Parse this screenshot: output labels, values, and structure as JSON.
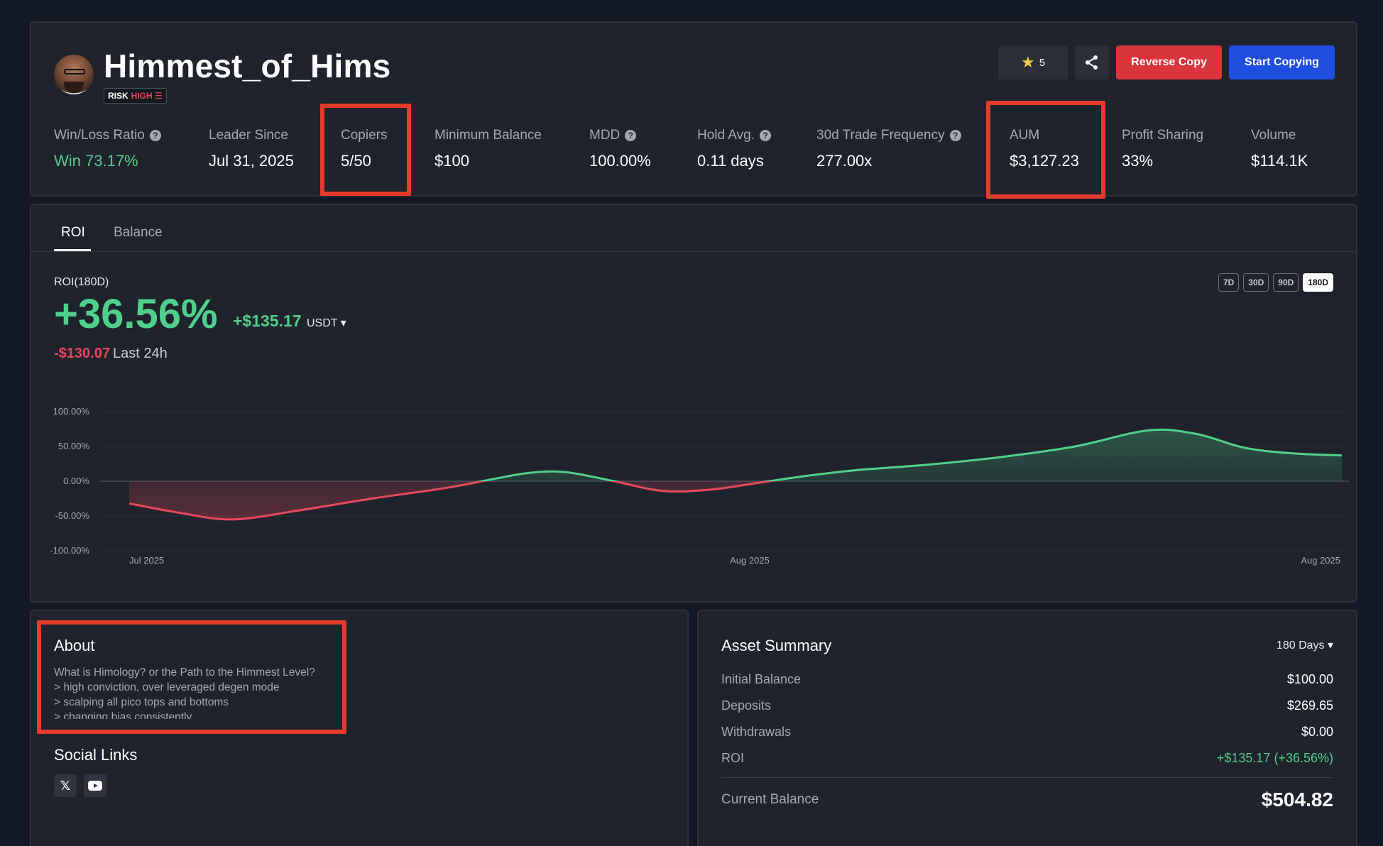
{
  "profile": {
    "username": "Himmest_of_Hims",
    "risk_label": "RISK",
    "risk_level": "HIGH ☰"
  },
  "actions": {
    "star_count": "5",
    "reverse_copy": "Reverse Copy",
    "start_copying": "Start Copying"
  },
  "stats": [
    {
      "label": "Win/Loss Ratio",
      "value": "Win 73.17%"
    },
    {
      "label": "Leader Since",
      "value": "Jul 31, 2025"
    },
    {
      "label": "Copiers",
      "value": "5/50"
    },
    {
      "label": "Minimum Balance",
      "value": "$100"
    },
    {
      "label": "MDD",
      "value": "100.00%"
    },
    {
      "label": "Hold Avg.",
      "value": "0.11 days"
    },
    {
      "label": "30d Trade Frequency",
      "value": "277.00x"
    },
    {
      "label": "AUM",
      "value": "$3,127.23"
    },
    {
      "label": "Profit Sharing",
      "value": "33%"
    },
    {
      "label": "Volume",
      "value": "$114.1K"
    }
  ],
  "tabs": [
    "ROI",
    "Balance"
  ],
  "roi": {
    "label": "ROI(180D)",
    "percent": "+36.56%",
    "pnl": "+$135.17",
    "unit": "USDT ▾",
    "change_24h": "-$130.07",
    "change_24h_label": "Last 24h",
    "ranges": [
      "7D",
      "30D",
      "90D",
      "180D"
    ],
    "active_range": "180D"
  },
  "chart_data": {
    "type": "area",
    "title": "",
    "x_tick_labels": [
      "Jul 2025",
      "Aug 2025",
      "Aug 2025"
    ],
    "y_tick_labels": [
      "100.00%",
      "50.00%",
      "0.00%",
      "-50.00%",
      "-100.00%"
    ],
    "ylim": [
      -100,
      100
    ],
    "series": [
      {
        "x": [
          0,
          0.04,
          0.085,
          0.14,
          0.2,
          0.26,
          0.3,
          0.33,
          0.36,
          0.4,
          0.44,
          0.48,
          0.52,
          0.56,
          0.6,
          0.66,
          0.72,
          0.78,
          0.84,
          0.88,
          0.92,
          0.96,
          1.0
        ],
        "values": [
          -32,
          -45,
          -55,
          -42,
          -25,
          -10,
          3,
          12,
          13,
          0,
          -14,
          -12,
          -2,
          8,
          16,
          24,
          35,
          50,
          73,
          68,
          48,
          40,
          37
        ]
      }
    ],
    "positive_color": "#4fd08a",
    "negative_color": "#e8485a",
    "grid": true
  },
  "about": {
    "title": "About",
    "lines": [
      "What is Himology? or the Path to the Himmest Level?",
      "> high conviction, over leveraged degen mode",
      "> scalping all pico tops and bottoms",
      "> changing bias consistently"
    ]
  },
  "social": {
    "title": "Social Links",
    "icons": [
      "x-icon",
      "youtube-icon"
    ]
  },
  "asset_summary": {
    "title": "Asset Summary",
    "range": "180 Days ▾",
    "rows": [
      {
        "label": "Initial Balance",
        "value": "$100.00"
      },
      {
        "label": "Deposits",
        "value": "$269.65"
      },
      {
        "label": "Withdrawals",
        "value": "$0.00"
      },
      {
        "label": "ROI",
        "value": "+$135.17 (+36.56%)"
      }
    ],
    "current_label": "Current Balance",
    "current_value": "$504.82"
  }
}
